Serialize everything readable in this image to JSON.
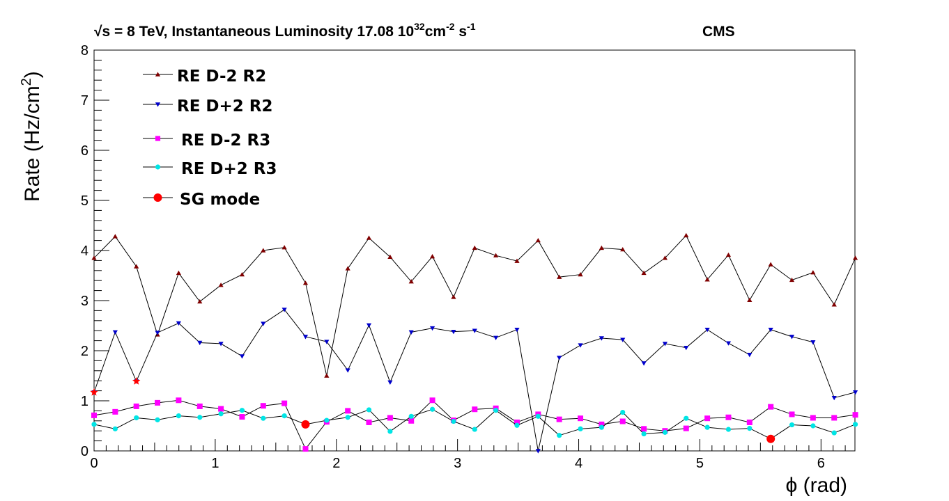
{
  "chart_data": {
    "type": "line",
    "title_prefix": "√s = 8 TeV, Instantaneous Luminosity 17.08 10",
    "title_exp1": "32",
    "title_mid": "cm",
    "title_exp2": "-2",
    "title_mid2": " s",
    "title_exp3": "-1",
    "experiment": "CMS",
    "xlabel": "ϕ (rad)",
    "ylabel_main": "Rate (Hz/cm",
    "ylabel_exp": "2",
    "ylabel_end": ")",
    "xlim": [
      0,
      6.28
    ],
    "ylim": [
      0,
      8
    ],
    "xticks": [
      "0",
      "1",
      "2",
      "3",
      "4",
      "5",
      "6"
    ],
    "yticks": [
      "0",
      "1",
      "2",
      "3",
      "4",
      "5",
      "6",
      "7",
      "8"
    ],
    "x": [
      0,
      0.1745,
      0.349,
      0.5236,
      0.6981,
      0.8727,
      1.0472,
      1.2217,
      1.3963,
      1.5708,
      1.7453,
      1.9199,
      2.0944,
      2.2689,
      2.4435,
      2.618,
      2.7925,
      2.9671,
      3.1416,
      3.3161,
      3.4907,
      3.6652,
      3.8397,
      4.0143,
      4.1888,
      4.3633,
      4.5379,
      4.7124,
      4.8869,
      5.0615,
      5.236,
      5.4105,
      5.5851,
      5.7596,
      5.9341,
      6.1087,
      6.2832
    ],
    "series": [
      {
        "name": "RE D-2 R2",
        "marker": "triangle-up",
        "color": "#800000",
        "values": [
          3.85,
          4.28,
          3.68,
          2.32,
          3.55,
          2.98,
          3.31,
          3.52,
          4.0,
          4.06,
          3.35,
          1.5,
          3.64,
          4.25,
          3.87,
          3.38,
          3.88,
          3.07,
          4.05,
          3.9,
          3.79,
          4.2,
          3.47,
          3.52,
          4.05,
          4.02,
          3.55,
          3.85,
          4.3,
          3.42,
          3.91,
          3.01,
          3.72,
          3.41,
          3.56,
          2.92,
          3.85
        ]
      },
      {
        "name": "RE D+2 R2",
        "marker": "triangle-down",
        "color": "#0000cc",
        "values": [
          1.17,
          2.37,
          1.39,
          2.36,
          2.55,
          2.16,
          2.14,
          1.89,
          2.54,
          2.82,
          2.28,
          2.18,
          1.61,
          2.51,
          1.37,
          2.37,
          2.45,
          2.38,
          2.4,
          2.26,
          2.42,
          0.0,
          1.86,
          2.11,
          2.25,
          2.22,
          1.75,
          2.14,
          2.06,
          2.42,
          2.15,
          1.92,
          2.42,
          2.28,
          2.17,
          1.06,
          1.17
        ]
      },
      {
        "name": "RE D-2  R3",
        "marker": "square",
        "color": "#ff00ff",
        "values": [
          0.71,
          0.78,
          0.89,
          0.96,
          1.01,
          0.89,
          0.84,
          0.68,
          0.9,
          0.95,
          0.04,
          0.58,
          0.8,
          0.57,
          0.66,
          0.6,
          1.01,
          0.61,
          0.83,
          0.85,
          0.57,
          0.73,
          0.63,
          0.65,
          0.53,
          0.59,
          0.44,
          0.4,
          0.45,
          0.65,
          0.67,
          0.57,
          0.88,
          0.73,
          0.66,
          0.66,
          0.72
        ]
      },
      {
        "name": "RE D+2 R3",
        "marker": "circle",
        "color": "#00e5e5",
        "values": [
          0.53,
          0.44,
          0.66,
          0.62,
          0.7,
          0.67,
          0.74,
          0.81,
          0.65,
          0.7,
          0.53,
          0.61,
          0.67,
          0.82,
          0.39,
          0.69,
          0.83,
          0.59,
          0.43,
          0.81,
          0.51,
          0.69,
          0.31,
          0.44,
          0.47,
          0.77,
          0.34,
          0.37,
          0.65,
          0.47,
          0.43,
          0.45,
          0.24,
          0.52,
          0.5,
          0.36,
          0.53
        ]
      }
    ],
    "sg_mode": {
      "name": "SG mode",
      "color": "#ff0000",
      "points": [
        [
          1.7453,
          0.53
        ],
        [
          5.5851,
          0.24
        ]
      ],
      "star_points": [
        [
          0,
          1.17
        ],
        [
          0.349,
          1.39
        ]
      ]
    },
    "legend_placement": "top-left",
    "grid": false
  }
}
